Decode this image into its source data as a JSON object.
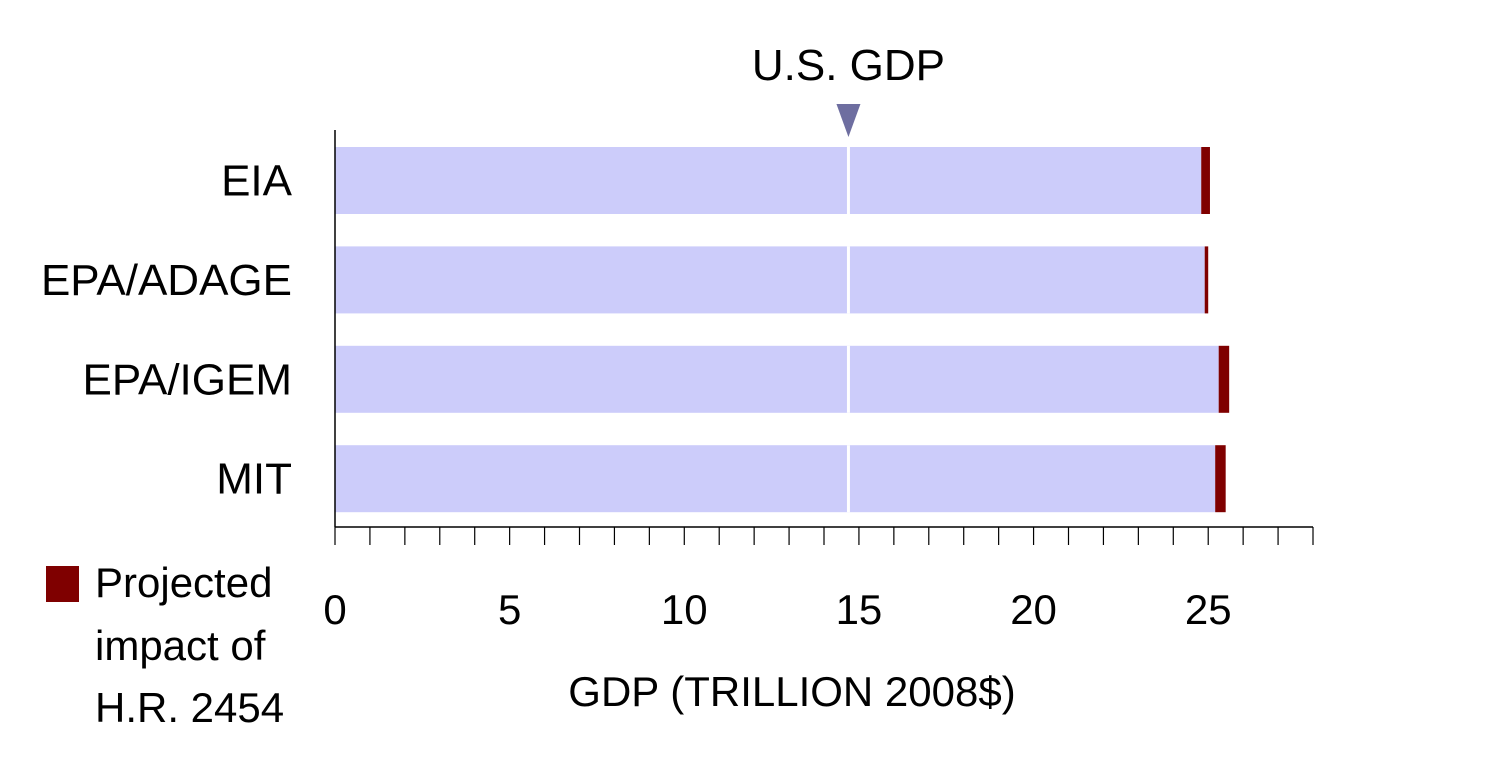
{
  "chart_data": {
    "type": "bar",
    "orientation": "horizontal",
    "stacked": true,
    "categories": [
      "EIA",
      "EPA/ADAGE",
      "EPA/IGEM",
      "MIT"
    ],
    "series": [
      {
        "name": "",
        "values": [
          24.8,
          24.9,
          25.3,
          25.2
        ],
        "color": "#CCCCFA"
      },
      {
        "name": "Projected impact of H.R. 2454",
        "values": [
          0.25,
          0.1,
          0.3,
          0.3
        ],
        "color": "#7F0000"
      }
    ],
    "reference_line": {
      "label": "U.S. GDP",
      "value": 14.7,
      "color": "#ffffff",
      "marker_color": "#6E6EA0"
    },
    "xlabel": "GDP (TRILLION 2008$)",
    "xlim": [
      0,
      28
    ],
    "xticks": [
      0,
      5,
      10,
      15,
      20,
      25
    ],
    "minor_tick_step": 1,
    "legend": {
      "position": "bottom-left",
      "lines": [
        "Projected",
        "impact of",
        "H.R. 2454"
      ]
    },
    "grid": false
  }
}
